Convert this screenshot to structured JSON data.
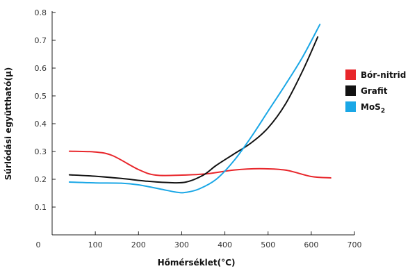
{
  "chart_data": {
    "type": "line",
    "title": "",
    "xlabel": "Hőmérséklet(°C)",
    "ylabel": "Súrlódási együttható(μ)",
    "xlim": [
      0,
      700
    ],
    "ylim": [
      0,
      0.8
    ],
    "x_ticks": [
      0,
      100,
      200,
      300,
      400,
      500,
      600,
      700
    ],
    "x_tick_labels": [
      "0",
      "100",
      "200",
      "300",
      "400",
      "500",
      "600",
      "700"
    ],
    "y_ticks": [
      0.1,
      0.2,
      0.3,
      0.4,
      0.5,
      0.6,
      0.7,
      0.8
    ],
    "y_tick_labels": [
      "0.1",
      "0.2",
      "0.3",
      "0.4",
      "0.5",
      "0.6",
      "0.7",
      "0.8"
    ],
    "grid": false,
    "legend_position": "right",
    "series": [
      {
        "name": "Bór-nitrid",
        "color": "#e8262b",
        "points": [
          [
            40,
            0.301
          ],
          [
            100,
            0.298
          ],
          [
            140,
            0.285
          ],
          [
            200,
            0.235
          ],
          [
            240,
            0.215
          ],
          [
            300,
            0.215
          ],
          [
            360,
            0.22
          ],
          [
            420,
            0.233
          ],
          [
            480,
            0.238
          ],
          [
            540,
            0.233
          ],
          [
            600,
            0.21
          ],
          [
            645,
            0.205
          ]
        ]
      },
      {
        "name": "Grafit",
        "color": "#111111",
        "points": [
          [
            40,
            0.216
          ],
          [
            100,
            0.211
          ],
          [
            160,
            0.203
          ],
          [
            220,
            0.193
          ],
          [
            270,
            0.188
          ],
          [
            310,
            0.19
          ],
          [
            350,
            0.215
          ],
          [
            380,
            0.25
          ],
          [
            420,
            0.29
          ],
          [
            460,
            0.33
          ],
          [
            500,
            0.385
          ],
          [
            540,
            0.47
          ],
          [
            580,
            0.59
          ],
          [
            615,
            0.712
          ]
        ]
      },
      {
        "name": "MoS",
        "name_sub": "2",
        "color": "#1aa7e6",
        "points": [
          [
            40,
            0.19
          ],
          [
            100,
            0.187
          ],
          [
            160,
            0.186
          ],
          [
            200,
            0.18
          ],
          [
            250,
            0.165
          ],
          [
            290,
            0.153
          ],
          [
            310,
            0.153
          ],
          [
            340,
            0.165
          ],
          [
            380,
            0.2
          ],
          [
            420,
            0.265
          ],
          [
            460,
            0.35
          ],
          [
            500,
            0.445
          ],
          [
            540,
            0.54
          ],
          [
            580,
            0.64
          ],
          [
            620,
            0.757
          ]
        ]
      }
    ]
  }
}
